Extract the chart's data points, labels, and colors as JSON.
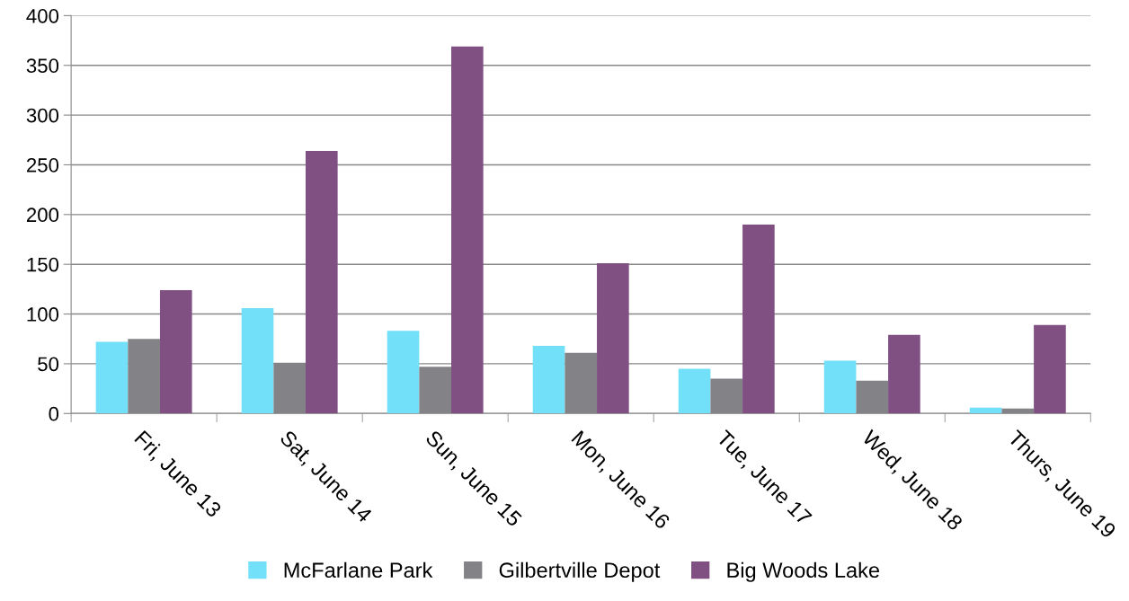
{
  "chart_data": {
    "type": "bar",
    "categories": [
      "Fri, June 13",
      "Sat, June 14",
      "Sun, June 15",
      "Mon, June 16",
      "Tue, June 17",
      "Wed, June 18",
      "Thurs, June 19"
    ],
    "series": [
      {
        "name": "McFarlane Park",
        "color": "#72e0f8",
        "values": [
          72,
          106,
          83,
          68,
          45,
          53,
          6
        ]
      },
      {
        "name": "Gilbertville Depot",
        "color": "#838387",
        "values": [
          75,
          51,
          47,
          61,
          35,
          33,
          5
        ]
      },
      {
        "name": "Big Woods Lake",
        "color": "#805083",
        "values": [
          124,
          264,
          369,
          151,
          190,
          79,
          89
        ]
      }
    ],
    "ylim": [
      0,
      400
    ],
    "yticks": [
      0,
      50,
      100,
      150,
      200,
      250,
      300,
      350,
      400
    ],
    "grid": "y",
    "legend": "bottom"
  }
}
